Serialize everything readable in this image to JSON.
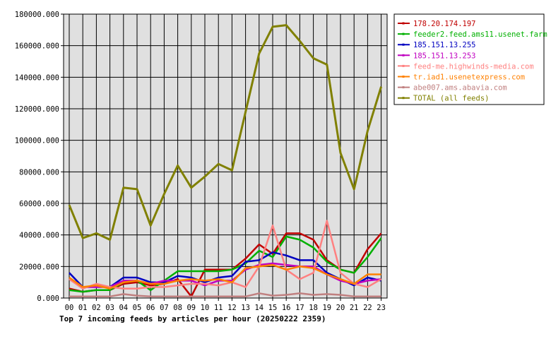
{
  "chart_data": {
    "type": "line",
    "title": "",
    "caption": "Top 7 incoming feeds by articles per hour (20250222 2359)",
    "xlabel": "",
    "ylabel": "",
    "categories": [
      "00",
      "01",
      "02",
      "03",
      "04",
      "05",
      "06",
      "07",
      "08",
      "09",
      "10",
      "11",
      "12",
      "13",
      "14",
      "15",
      "16",
      "17",
      "18",
      "19",
      "20",
      "21",
      "22",
      "23"
    ],
    "ylim": [
      0,
      180000
    ],
    "yticks": [
      0,
      20000,
      40000,
      60000,
      80000,
      100000,
      120000,
      140000,
      160000,
      180000
    ],
    "ytick_labels": [
      "0.000",
      "20000.000",
      "40000.000",
      "60000.000",
      "80000.000",
      "100000.000",
      "120000.000",
      "140000.000",
      "160000.000",
      "180000.000"
    ],
    "grid": true,
    "legend_position": "right",
    "series": [
      {
        "name": "178.20.174.197",
        "color": "#c00000",
        "values": [
          6000,
          4000,
          5000,
          5000,
          9000,
          10000,
          8000,
          9000,
          12000,
          1000,
          18000,
          18000,
          18000,
          25000,
          34000,
          28000,
          41000,
          41000,
          37000,
          24000,
          18000,
          16000,
          31000,
          41000
        ]
      },
      {
        "name": "feeder2.feed.ams11.usenet.farm",
        "color": "#00b000",
        "values": [
          5000,
          4000,
          5000,
          5000,
          10000,
          11000,
          5000,
          11000,
          17000,
          17000,
          17000,
          17000,
          18000,
          22000,
          30000,
          26000,
          39000,
          37000,
          32000,
          23000,
          18000,
          16000,
          26000,
          38000
        ]
      },
      {
        "name": "185.151.13.255",
        "color": "#0000c0",
        "values": [
          16000,
          7000,
          7000,
          7000,
          13000,
          13000,
          10000,
          10000,
          14000,
          13000,
          10000,
          13000,
          14000,
          23000,
          24000,
          29000,
          27000,
          24000,
          24000,
          16000,
          12000,
          8000,
          13000,
          11000
        ]
      },
      {
        "name": "185.151.13.253",
        "color": "#c000c0",
        "values": [
          12000,
          7000,
          7000,
          7000,
          11000,
          11000,
          9000,
          11000,
          11000,
          11000,
          8000,
          11000,
          11000,
          18000,
          21000,
          22000,
          21000,
          20000,
          20000,
          15000,
          11000,
          9000,
          11000,
          12000
        ]
      },
      {
        "name": "feed-me.highwinds-media.com",
        "color": "#ff8080",
        "values": [
          12000,
          6000,
          9000,
          7000,
          6000,
          6000,
          7000,
          7000,
          8000,
          9000,
          9000,
          8000,
          10000,
          7000,
          20000,
          46000,
          18000,
          12000,
          16000,
          49000,
          16000,
          9000,
          7000,
          12000
        ]
      },
      {
        "name": "tr.iad1.usenetexpress.com",
        "color": "#ff8000",
        "values": [
          13000,
          7000,
          8000,
          6000,
          10000,
          11000,
          9000,
          9000,
          11000,
          12000,
          11000,
          12000,
          10000,
          19000,
          20000,
          21000,
          18000,
          20000,
          19000,
          15000,
          12000,
          9000,
          15000,
          15000
        ]
      },
      {
        "name": "abe007.ams.abavia.com",
        "color": "#c08080",
        "values": [
          1000,
          1000,
          1000,
          1000,
          2500,
          1500,
          1000,
          1000,
          1000,
          1000,
          1000,
          1000,
          1000,
          1000,
          3000,
          1500,
          2000,
          3000,
          2000,
          2500,
          2000,
          1000,
          1000,
          1000
        ]
      },
      {
        "name": "TOTAL (all feeds)",
        "color": "#808000",
        "values": [
          59000,
          38000,
          41000,
          37000,
          70000,
          69000,
          46000,
          66000,
          84000,
          70000,
          77000,
          85000,
          81000,
          118000,
          155000,
          172000,
          173000,
          163000,
          152000,
          148000,
          92000,
          69000,
          106000,
          134000
        ]
      }
    ]
  }
}
